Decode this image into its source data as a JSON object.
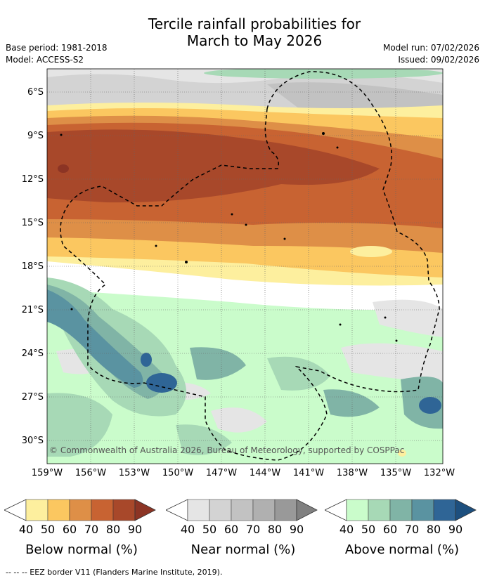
{
  "title_line1": "Tercile rainfall probabilities for",
  "title_line2": "March to May 2026",
  "meta": {
    "base_period": "Base period: 1981-2018",
    "model": "Model: ACCESS-S2",
    "model_run": "Model run: 07/02/2026",
    "issued": "Issued: 09/02/2026"
  },
  "map": {
    "lat_labels": [
      "6°S",
      "9°S",
      "12°S",
      "15°S",
      "18°S",
      "21°S",
      "24°S",
      "27°S",
      "30°S"
    ],
    "lon_labels": [
      "159°W",
      "156°W",
      "153°W",
      "150°W",
      "147°W",
      "144°W",
      "141°W",
      "138°W",
      "135°W",
      "132°W"
    ],
    "copyright": "© Commonwealth of Australia 2026, Bureau of Meteorology, supported by COSPPac"
  },
  "legends": [
    {
      "title": "Below normal (%)",
      "ticks": [
        "40",
        "50",
        "60",
        "70",
        "80",
        "90"
      ],
      "colors": [
        "#fdef9e",
        "#fbc760",
        "#de8f47",
        "#c86332",
        "#a8482a"
      ]
    },
    {
      "title": "Near normal (%)",
      "ticks": [
        "40",
        "50",
        "60",
        "70",
        "80",
        "90"
      ],
      "colors": [
        "#e5e5e5",
        "#d3d3d3",
        "#c2c2c2",
        "#b0b0b0",
        "#999999"
      ]
    },
    {
      "title": "Above normal (%)",
      "ticks": [
        "40",
        "50",
        "60",
        "70",
        "80",
        "90"
      ],
      "colors": [
        "#cafccb",
        "#a7d9b6",
        "#80b4a6",
        "#5a93a1",
        "#2f6596"
      ]
    }
  ],
  "eez_note": "-- -- -- EEZ border V11 (Flanders Marine Institute, 2019)."
}
